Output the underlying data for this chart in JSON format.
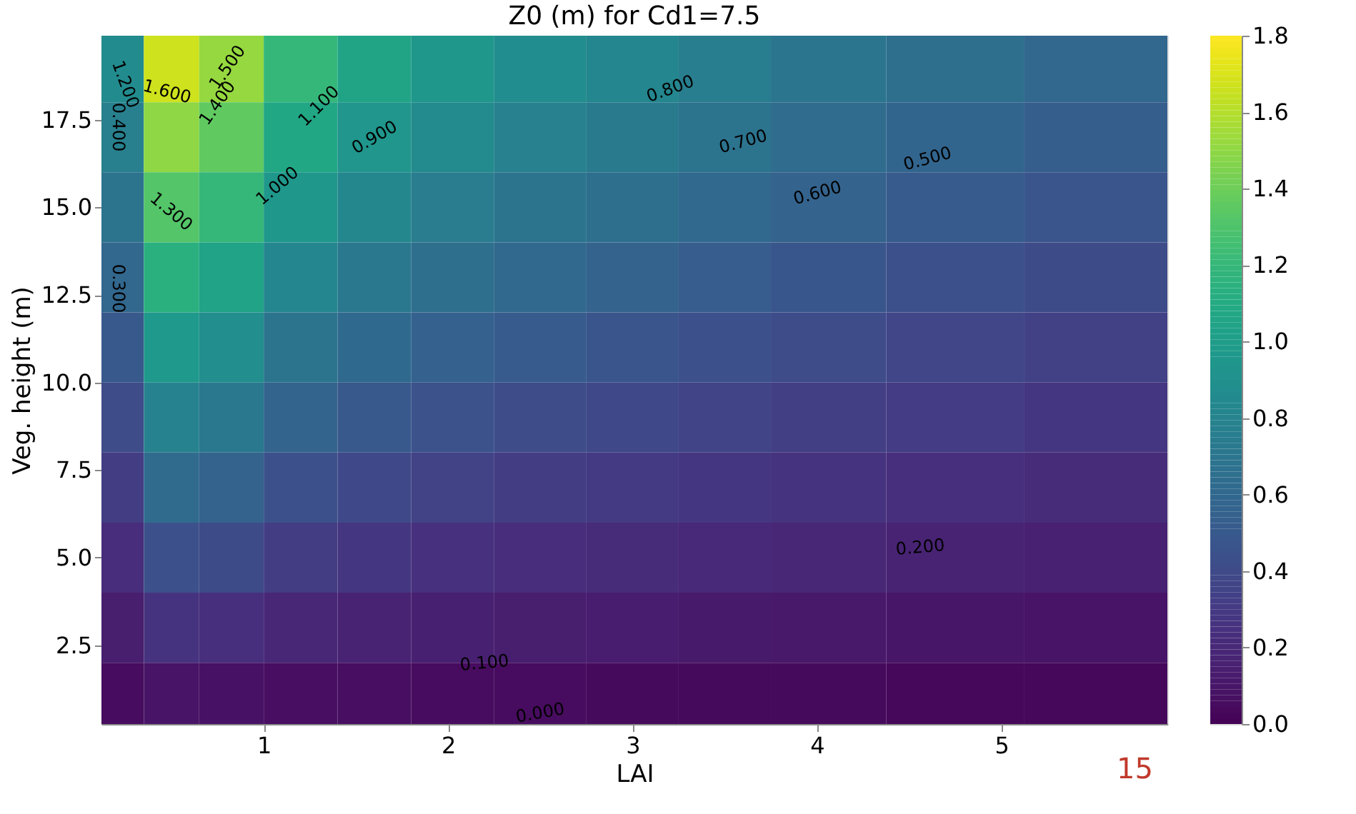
{
  "chart_data": {
    "type": "heatmap",
    "title": "Z0 (m) for Cd1=7.5",
    "xlabel": "LAI",
    "ylabel": "Veg. height (m)",
    "x": [
      0.2,
      0.5,
      0.8,
      1.2,
      1.6,
      2.0,
      2.5,
      3.0,
      3.5,
      4.0,
      4.75,
      5.5
    ],
    "y": [
      19,
      17,
      15,
      13,
      11,
      9,
      7,
      5,
      3,
      1
    ],
    "cells": [
      [
        0.86,
        1.67,
        1.52,
        1.2,
        1.05,
        0.95,
        0.87,
        0.82,
        0.76,
        0.7,
        0.65,
        0.59
      ],
      [
        0.77,
        1.5,
        1.36,
        1.07,
        0.94,
        0.85,
        0.78,
        0.73,
        0.68,
        0.63,
        0.58,
        0.53
      ],
      [
        0.68,
        1.32,
        1.2,
        0.95,
        0.83,
        0.75,
        0.69,
        0.65,
        0.6,
        0.56,
        0.51,
        0.47
      ],
      [
        0.59,
        1.14,
        1.04,
        0.82,
        0.72,
        0.65,
        0.6,
        0.56,
        0.52,
        0.48,
        0.44,
        0.4
      ],
      [
        0.5,
        0.97,
        0.88,
        0.69,
        0.61,
        0.55,
        0.51,
        0.47,
        0.44,
        0.41,
        0.37,
        0.34
      ],
      [
        0.41,
        0.79,
        0.72,
        0.57,
        0.5,
        0.45,
        0.41,
        0.39,
        0.36,
        0.33,
        0.31,
        0.28
      ],
      [
        0.32,
        0.62,
        0.56,
        0.44,
        0.39,
        0.35,
        0.32,
        0.3,
        0.28,
        0.26,
        0.24,
        0.22
      ],
      [
        0.23,
        0.44,
        0.4,
        0.32,
        0.28,
        0.25,
        0.23,
        0.22,
        0.2,
        0.19,
        0.17,
        0.16
      ],
      [
        0.14,
        0.26,
        0.24,
        0.19,
        0.17,
        0.15,
        0.14,
        0.13,
        0.12,
        0.11,
        0.1,
        0.09
      ],
      [
        0.05,
        0.09,
        0.08,
        0.06,
        0.06,
        0.05,
        0.05,
        0.04,
        0.04,
        0.04,
        0.03,
        0.03
      ]
    ],
    "xlim": [
      0.12,
      5.9
    ],
    "xticks": [
      1,
      2,
      3,
      4,
      5
    ],
    "ylim": [
      0.25,
      19.9
    ],
    "yticks": [
      2.5,
      {
        "value": 5,
        "label": "5.0"
      },
      7.5,
      {
        "value": 10,
        "label": "10.0"
      },
      12.5,
      {
        "value": 15,
        "label": "15.0"
      },
      17.5
    ],
    "clim": [
      0,
      1.8
    ],
    "cticks": [
      {
        "value": 0,
        "label": "0.0"
      },
      0.2,
      0.4,
      0.6,
      0.8,
      {
        "value": 1,
        "label": "1.0"
      },
      1.2,
      1.4,
      1.6,
      1.8
    ],
    "grid": false,
    "annotations": [
      "0.000",
      "0.100",
      "0.200",
      "0.300",
      "0.400",
      "0.500",
      "0.600",
      "0.700",
      "0.800",
      "0.900",
      "1.000",
      "1.100",
      "1.200",
      "1.300",
      "1.400",
      "1.500",
      "1.600",
      "15"
    ]
  }
}
